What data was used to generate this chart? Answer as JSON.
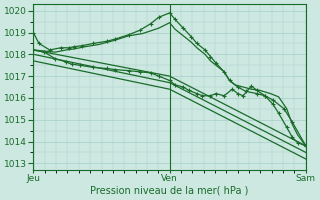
{
  "title": "Pression niveau de la mer( hPa )",
  "xlabel_ticks": [
    "Jeu",
    "Ven",
    "Sam"
  ],
  "xlabel_tick_positions": [
    0,
    0.5,
    1.0
  ],
  "ylabel_min": 1013,
  "ylabel_max": 1020,
  "background_color": "#cce8e0",
  "grid_color": "#a8cfc8",
  "line_color": "#1a6b2a",
  "series": [
    {
      "x": [
        0,
        0.02,
        0.06,
        0.1,
        0.13,
        0.15,
        0.18,
        0.22,
        0.27,
        0.3,
        0.35,
        0.39,
        0.43,
        0.46,
        0.5,
        0.52,
        0.55,
        0.58,
        0.6,
        0.63,
        0.65,
        0.67,
        0.7,
        0.72,
        0.75,
        0.78,
        0.82,
        0.85,
        0.88,
        0.92,
        0.95,
        1.0
      ],
      "y": [
        1019.0,
        1018.5,
        1018.2,
        1018.3,
        1018.3,
        1018.35,
        1018.4,
        1018.5,
        1018.6,
        1018.7,
        1018.9,
        1019.1,
        1019.4,
        1019.7,
        1019.9,
        1019.6,
        1019.2,
        1018.8,
        1018.5,
        1018.2,
        1017.9,
        1017.6,
        1017.2,
        1016.8,
        1016.5,
        1016.3,
        1016.2,
        1016.1,
        1015.9,
        1015.5,
        1014.9,
        1013.8
      ],
      "marker": true
    },
    {
      "x": [
        0,
        0.04,
        0.08,
        0.12,
        0.15,
        0.19,
        0.24,
        0.3,
        0.35,
        0.4,
        0.46,
        0.5,
        0.52,
        0.55,
        0.58,
        0.6,
        0.63,
        0.65,
        0.67,
        0.7,
        0.72,
        0.74,
        0.77,
        0.8,
        0.83,
        0.87,
        0.9,
        0.93,
        0.95,
        0.97,
        1.0
      ],
      "y": [
        1018.2,
        1018.15,
        1018.1,
        1018.2,
        1018.25,
        1018.35,
        1018.45,
        1018.65,
        1018.85,
        1018.95,
        1019.2,
        1019.45,
        1019.15,
        1018.85,
        1018.55,
        1018.3,
        1018.0,
        1017.7,
        1017.5,
        1017.2,
        1016.8,
        1016.6,
        1016.5,
        1016.4,
        1016.35,
        1016.2,
        1016.05,
        1015.5,
        1014.8,
        1014.3,
        1013.8
      ],
      "marker": false
    },
    {
      "x": [
        0,
        0.5,
        1.0
      ],
      "y": [
        1018.2,
        1017.0,
        1013.8
      ],
      "marker": false
    },
    {
      "x": [
        0,
        0.5,
        1.0
      ],
      "y": [
        1018.0,
        1016.7,
        1013.5
      ],
      "marker": false
    },
    {
      "x": [
        0,
        0.5,
        1.0
      ],
      "y": [
        1017.7,
        1016.4,
        1013.2
      ],
      "marker": false
    },
    {
      "x": [
        0,
        0.04,
        0.08,
        0.12,
        0.14,
        0.17,
        0.22,
        0.27,
        0.3,
        0.35,
        0.39,
        0.43,
        0.46,
        0.5,
        0.52,
        0.55,
        0.57,
        0.6,
        0.62,
        0.65,
        0.67,
        0.7,
        0.73,
        0.75,
        0.77,
        0.8,
        0.82,
        0.85,
        0.88,
        0.9,
        0.93,
        0.95,
        0.97,
        1.0
      ],
      "y": [
        1018.2,
        1018.1,
        1017.8,
        1017.65,
        1017.55,
        1017.5,
        1017.4,
        1017.35,
        1017.3,
        1017.25,
        1017.2,
        1017.15,
        1017.0,
        1016.8,
        1016.6,
        1016.5,
        1016.35,
        1016.2,
        1016.1,
        1016.1,
        1016.2,
        1016.1,
        1016.4,
        1016.2,
        1016.1,
        1016.55,
        1016.35,
        1016.1,
        1015.7,
        1015.3,
        1014.65,
        1014.2,
        1013.95,
        1013.8
      ],
      "marker": true
    }
  ],
  "marker_style": "+",
  "marker_size": 3.5,
  "linewidth": 0.9
}
